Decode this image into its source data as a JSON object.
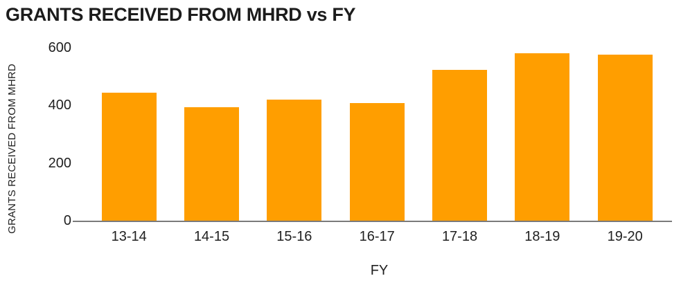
{
  "title": "GRANTS RECEIVED FROM MHRD vs FY",
  "colors": {
    "bar": "#FF9E00",
    "axis_line": "#7a7a7a",
    "text": "#1f1f1f"
  },
  "chart_data": {
    "type": "bar",
    "title": "GRANTS RECEIVED FROM MHRD vs FY",
    "xlabel": "FY",
    "ylabel": "GRANTS RECEIVED FROM MHRD",
    "categories": [
      "13-14",
      "14-15",
      "15-16",
      "16-17",
      "17-18",
      "18-19",
      "19-20"
    ],
    "values": [
      445,
      393,
      420,
      408,
      523,
      580,
      575
    ],
    "ylim": [
      0,
      600
    ],
    "yticks": [
      0,
      200,
      400,
      600
    ],
    "grid": false,
    "legend": false,
    "bar_color": "#FF9E00"
  }
}
